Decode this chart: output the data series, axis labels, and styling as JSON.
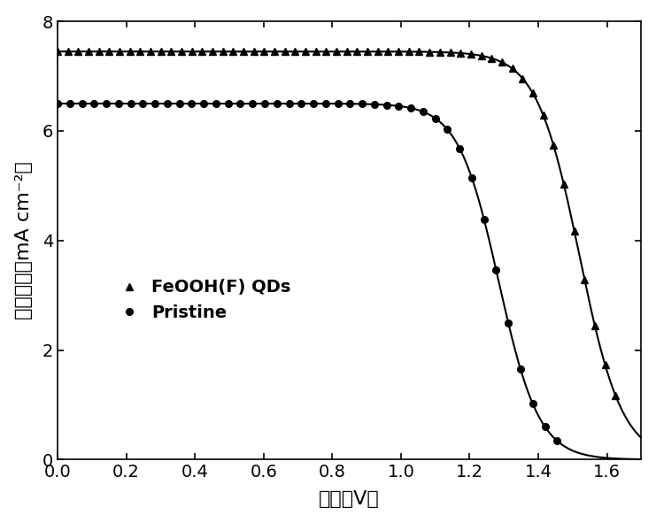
{
  "title": "",
  "xlabel": "电压（V）",
  "ylabel": "电流密度（mA cm⁻²）",
  "xlim": [
    0.0,
    1.7
  ],
  "ylim": [
    0.0,
    8.0
  ],
  "xticks": [
    0.0,
    0.2,
    0.4,
    0.6,
    0.8,
    1.0,
    1.2,
    1.4,
    1.6
  ],
  "yticks": [
    0,
    2,
    4,
    6,
    8
  ],
  "background_color": "#ffffff",
  "line_color": "#000000",
  "series": [
    {
      "label": "FeOOH(F) QDs",
      "marker": "^",
      "jsc": 7.45,
      "voc": 1.625,
      "steepness": 8.0,
      "v_mid": 1.52,
      "n_markers": 55
    },
    {
      "label": "Pristine",
      "marker": "o",
      "jsc": 6.5,
      "voc": 1.455,
      "steepness": 8.5,
      "v_mid": 1.285,
      "n_markers": 42
    }
  ]
}
